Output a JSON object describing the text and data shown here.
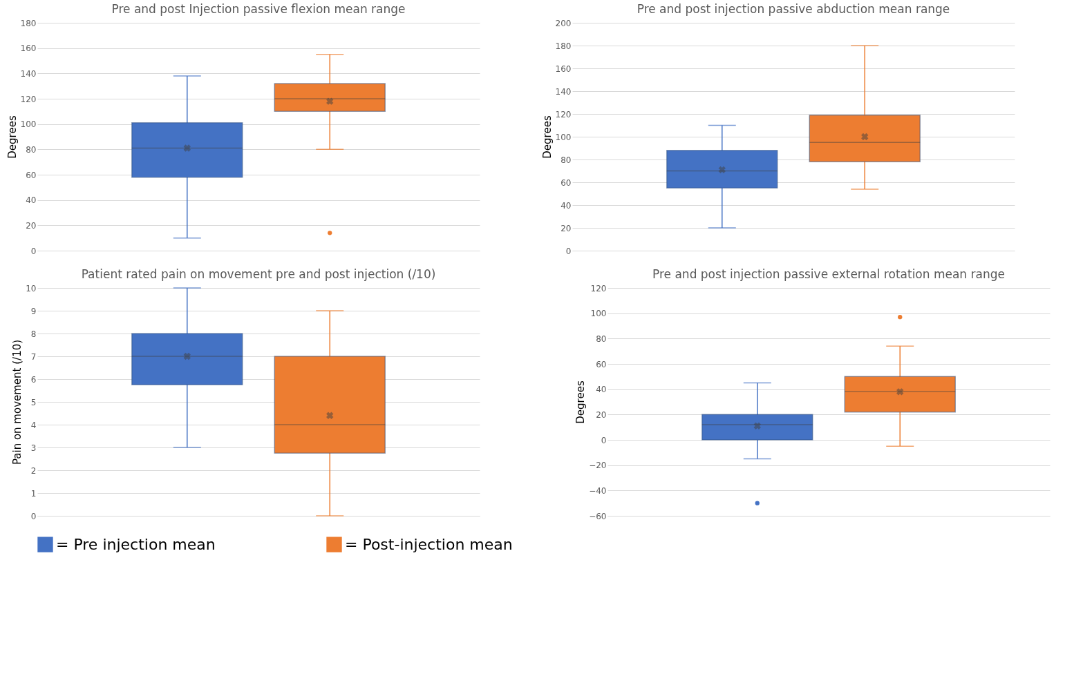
{
  "chart_data": [
    {
      "type": "box",
      "title": "Pre and post Injection passive flexion mean range",
      "ylabel": "Degrees",
      "categories": [
        null
      ],
      "ylim": [
        0,
        180
      ],
      "yticks": [
        0,
        20,
        40,
        60,
        80,
        100,
        120,
        140,
        160,
        180
      ],
      "grid": "y",
      "tick_labels": "y",
      "series": [
        {
          "color": "#4472c4",
          "boxes": [
            {
              "low": 10,
              "q1": 58,
              "median": 81,
              "q3": 101,
              "high": 138,
              "mean": 81
            }
          ]
        },
        {
          "color": "#ed7d31",
          "boxes": [
            {
              "low": 80,
              "q1": 110,
              "median": 120,
              "q3": 132,
              "high": 155,
              "mean": 118,
              "outliers": [
                14
              ]
            }
          ]
        }
      ]
    },
    {
      "type": "box",
      "title": "Pre and post injection passive abduction mean range",
      "ylabel": "Degrees",
      "categories": [
        null
      ],
      "ylim": [
        0,
        200
      ],
      "yticks": [
        0,
        20,
        40,
        60,
        80,
        100,
        120,
        140,
        160,
        180,
        200
      ],
      "grid": "y",
      "tick_labels": "y",
      "series": [
        {
          "color": "#4472c4",
          "boxes": [
            {
              "low": 20,
              "q1": 55,
              "median": 70,
              "q3": 88,
              "high": 110,
              "mean": 71
            }
          ]
        },
        {
          "color": "#ed7d31",
          "boxes": [
            {
              "low": 54,
              "q1": 78,
              "median": 95,
              "q3": 119,
              "high": 180,
              "mean": 100
            }
          ]
        }
      ]
    },
    {
      "type": "box",
      "title": "Patient rated pain on movement pre and post injection (/10)",
      "ylabel": "Pain on movement (/10)",
      "categories": [
        null
      ],
      "ylim": [
        0,
        10
      ],
      "yticks": [
        0,
        1,
        2,
        3,
        4,
        5,
        6,
        7,
        8,
        9,
        10
      ],
      "grid": "y",
      "tick_labels": "y",
      "legend": "bottom",
      "series": [
        {
          "name": "= Pre injection mean",
          "color": "#4472c4",
          "boxes": [
            {
              "low": 3,
              "q1": 5.75,
              "median": 7,
              "q3": 8,
              "high": 10,
              "mean": 7
            }
          ]
        },
        {
          "name": "= Post-injection mean",
          "color": "#ed7d31",
          "boxes": [
            {
              "low": 0,
              "q1": 2.75,
              "median": 4,
              "q3": 7,
              "high": 9,
              "mean": 4.4
            }
          ]
        }
      ]
    },
    {
      "type": "box",
      "title": "Pre and post injection passive external rotation mean range",
      "ylabel": "Degrees",
      "categories": [
        null
      ],
      "ylim": [
        -60,
        120
      ],
      "yticks": [
        -60,
        -40,
        -20,
        0,
        20,
        40,
        60,
        80,
        100,
        120
      ],
      "grid": "y",
      "tick_labels": "y",
      "series": [
        {
          "color": "#4472c4",
          "boxes": [
            {
              "low": -15,
              "q1": 0,
              "median": 12,
              "q3": 20,
              "high": 45,
              "mean": 11,
              "outliers": [
                -50
              ]
            }
          ]
        },
        {
          "color": "#ed7d31",
          "boxes": [
            {
              "low": -5,
              "q1": 22,
              "median": 38,
              "q3": 50,
              "high": 74,
              "mean": 38,
              "outliers": [
                97
              ]
            }
          ]
        }
      ]
    }
  ]
}
